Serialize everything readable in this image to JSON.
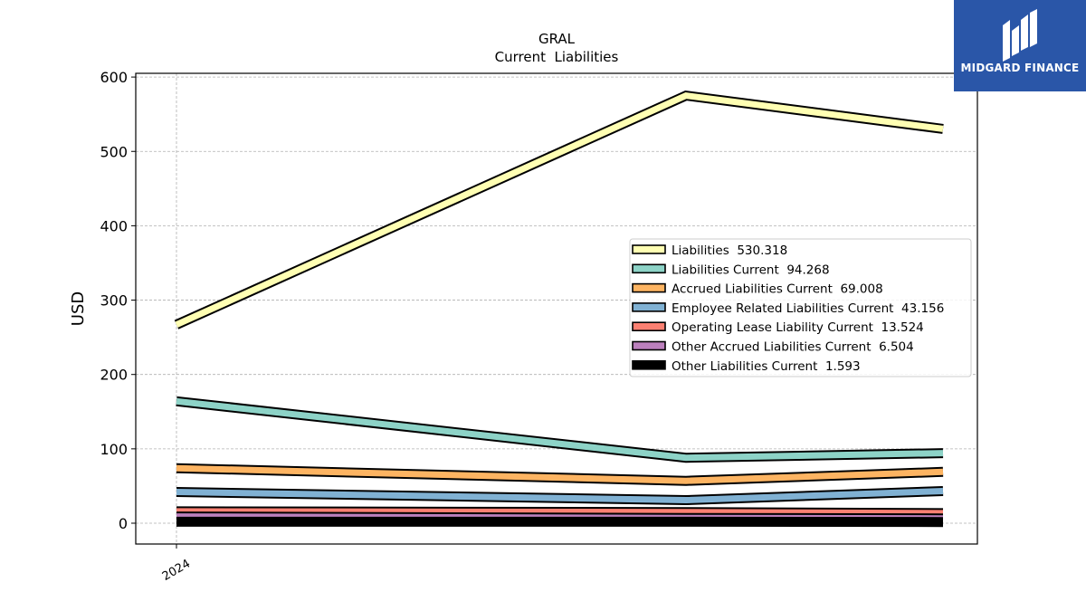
{
  "chart_data": {
    "type": "line",
    "title": "GRAL",
    "subtitle": "Current  Liabilities",
    "ylabel": "USD",
    "xlabel": "",
    "x": [
      0,
      1,
      1.5
    ],
    "xtick_labels": [
      {
        "x": 0,
        "label": "2024"
      }
    ],
    "ylim": [
      -28,
      605
    ],
    "yticks": [
      0,
      100,
      200,
      300,
      400,
      500,
      600
    ],
    "grid": true,
    "legend_position": "center-right",
    "series": [
      {
        "name": "Liabilities",
        "legend_value": "530.318",
        "values": [
          267,
          575,
          530.318
        ],
        "color": "#ffffb3"
      },
      {
        "name": "Liabilities Current",
        "legend_value": "94.268",
        "values": [
          164,
          88,
          94.268
        ],
        "color": "#8dd3c7"
      },
      {
        "name": "Accrued Liabilities Current",
        "legend_value": "69.008",
        "values": [
          74,
          57,
          69.008
        ],
        "color": "#fdb462"
      },
      {
        "name": "Employee Related Liabilities Current",
        "legend_value": "43.156",
        "values": [
          42,
          31,
          43.156
        ],
        "color": "#80b1d3"
      },
      {
        "name": "Operating Lease Liability Current",
        "legend_value": "13.524",
        "values": [
          16,
          15,
          13.524
        ],
        "color": "#fb8072"
      },
      {
        "name": "Other Accrued Liabilities Current",
        "legend_value": "6.504",
        "values": [
          9,
          7,
          6.504
        ],
        "color": "#bc80bd"
      },
      {
        "name": "Other Liabilities Current",
        "legend_value": "1.593",
        "values": [
          2,
          2,
          1.593
        ],
        "color": "#000000"
      }
    ]
  },
  "logo": {
    "text": "MIDGARD FINANCE",
    "color": "#2a56a8"
  }
}
